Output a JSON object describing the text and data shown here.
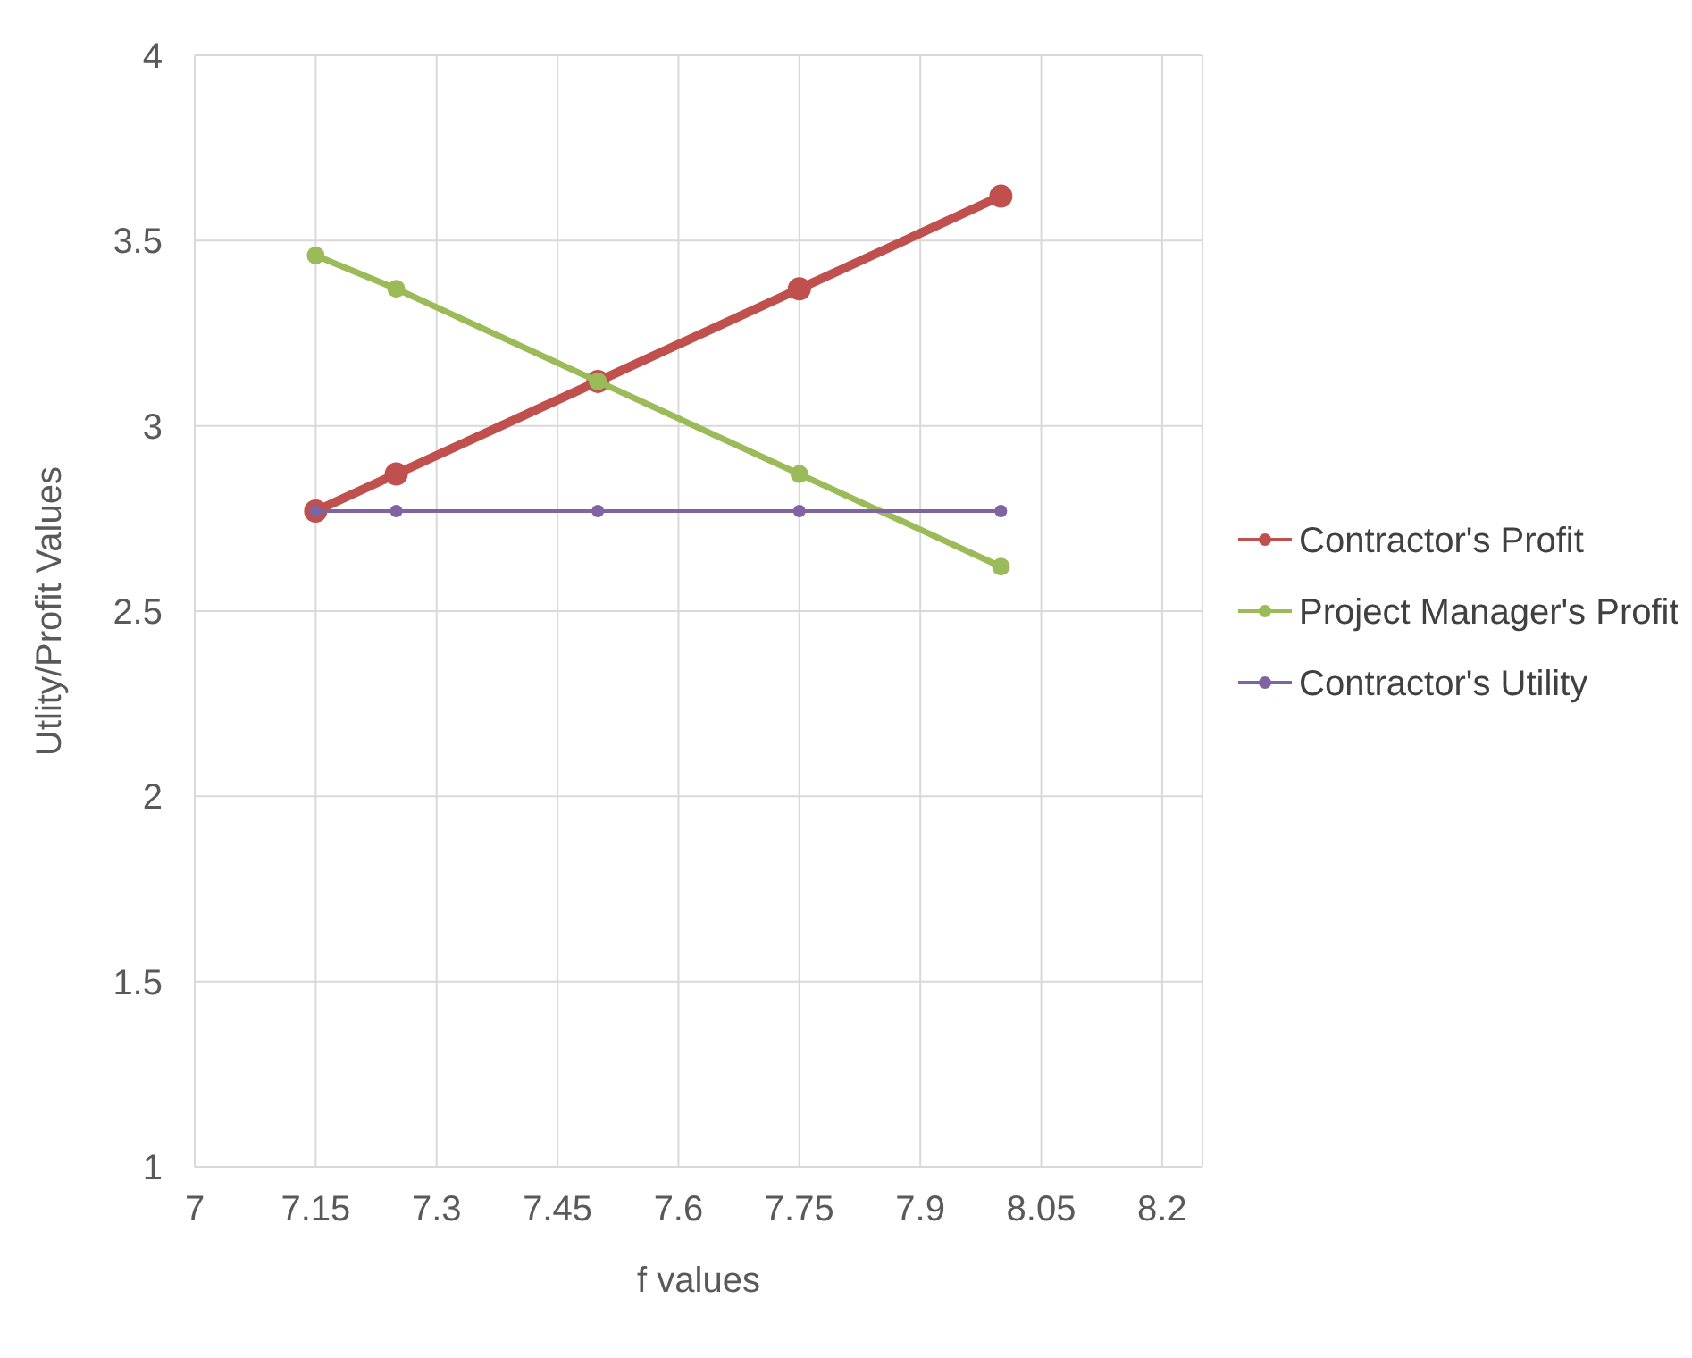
{
  "chart_data": {
    "type": "line",
    "xlabel": "f values",
    "ylabel": "Utlity/Profit Values",
    "xlim": [
      7,
      8.25
    ],
    "xticks": [
      7,
      7.15,
      7.3,
      7.45,
      7.6,
      7.75,
      7.9,
      8.05,
      8.2
    ],
    "ylim": [
      1,
      4
    ],
    "yticks": [
      1,
      1.5,
      2,
      2.5,
      3,
      3.5,
      4
    ],
    "x": [
      7.15,
      7.25,
      7.5,
      7.75,
      8.0
    ],
    "series": [
      {
        "name": "Contractor's Profit",
        "color": "#c0504d",
        "values": [
          2.77,
          2.87,
          3.12,
          3.37,
          3.62
        ]
      },
      {
        "name": "Project Manager's Profit",
        "color": "#9bbb59",
        "values": [
          3.46,
          3.37,
          3.12,
          2.87,
          2.62
        ]
      },
      {
        "name": "Contractor's Utility",
        "color": "#8064a2",
        "values": [
          2.77,
          2.77,
          2.77,
          2.77,
          2.77
        ]
      }
    ],
    "grid": true,
    "legend": "right",
    "marker": "circle",
    "line_style": "solid"
  }
}
